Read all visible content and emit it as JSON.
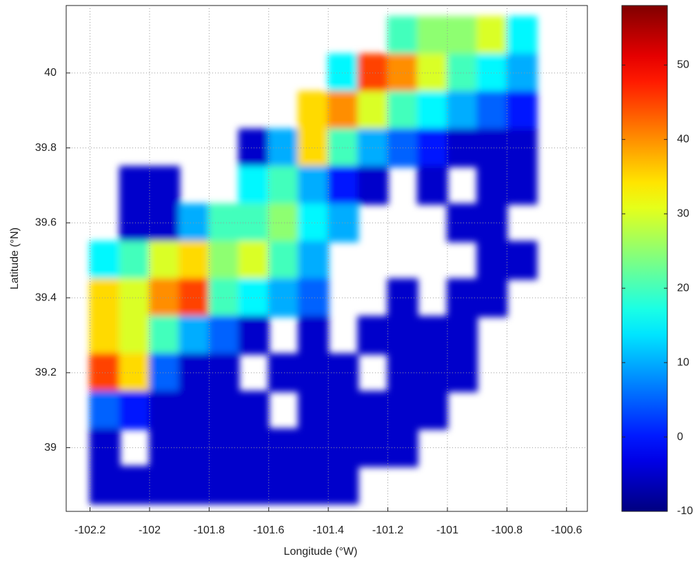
{
  "chart_data": {
    "type": "heatmap",
    "xlabel": "Longitude (°W)",
    "ylabel": "Latitude (°N)",
    "xlim": [
      -102.28,
      -100.53
    ],
    "ylim": [
      38.83,
      40.18
    ],
    "xticks": [
      -102.2,
      -102,
      -101.8,
      -101.6,
      -101.4,
      -101.2,
      -101,
      -100.8,
      -100.6
    ],
    "yticks": [
      39,
      39.2,
      39.4,
      39.6,
      39.8,
      40
    ],
    "grid": true,
    "colormap": "jet",
    "clim": [
      -10,
      58
    ],
    "cticks": [
      -10,
      0,
      10,
      20,
      30,
      40,
      50
    ],
    "x": [
      -102.15,
      -102.05,
      -101.95,
      -101.85,
      -101.75,
      -101.65,
      -101.55,
      -101.45,
      -101.35,
      -101.25,
      -101.15,
      -101.05,
      -100.95,
      -100.85,
      -100.75
    ],
    "y": [
      40.1,
      40.0,
      39.9,
      39.8,
      39.7,
      39.6,
      39.5,
      39.4,
      39.3,
      39.2,
      39.1,
      39.0,
      38.9
    ],
    "values": [
      [
        null,
        null,
        null,
        null,
        null,
        null,
        null,
        null,
        null,
        null,
        20,
        25,
        25,
        30,
        15
      ],
      [
        null,
        null,
        null,
        null,
        null,
        null,
        null,
        null,
        15,
        45,
        40,
        30,
        20,
        15,
        10
      ],
      [
        null,
        null,
        null,
        null,
        null,
        null,
        null,
        35,
        40,
        30,
        20,
        15,
        10,
        5,
        0
      ],
      [
        null,
        null,
        null,
        null,
        null,
        -5,
        10,
        35,
        20,
        10,
        5,
        0,
        -5,
        -5,
        -5
      ],
      [
        null,
        -5,
        -5,
        null,
        null,
        15,
        20,
        10,
        0,
        -5,
        null,
        -5,
        null,
        -5,
        -5
      ],
      [
        null,
        -5,
        -5,
        10,
        20,
        20,
        25,
        15,
        10,
        null,
        null,
        null,
        -5,
        -5,
        null
      ],
      [
        15,
        20,
        30,
        35,
        25,
        30,
        20,
        10,
        null,
        null,
        null,
        null,
        null,
        -5,
        -5
      ],
      [
        35,
        30,
        40,
        45,
        20,
        15,
        10,
        5,
        null,
        null,
        -5,
        null,
        -5,
        -5,
        null
      ],
      [
        35,
        30,
        20,
        10,
        5,
        -5,
        null,
        -5,
        null,
        -5,
        -5,
        -5,
        -5,
        null,
        null
      ],
      [
        45,
        35,
        5,
        -5,
        -5,
        null,
        -5,
        -5,
        -5,
        null,
        -5,
        -5,
        -5,
        null,
        null
      ],
      [
        5,
        0,
        -5,
        -5,
        -5,
        -5,
        null,
        -5,
        -5,
        -5,
        -5,
        -5,
        null,
        null,
        null
      ],
      [
        -5,
        null,
        -5,
        -5,
        -5,
        -5,
        -5,
        -5,
        -5,
        -5,
        -5,
        null,
        null,
        null,
        null
      ],
      [
        -5,
        -5,
        -5,
        -5,
        -5,
        -5,
        -5,
        -5,
        -5,
        null,
        null,
        null,
        null,
        null,
        null
      ]
    ]
  }
}
